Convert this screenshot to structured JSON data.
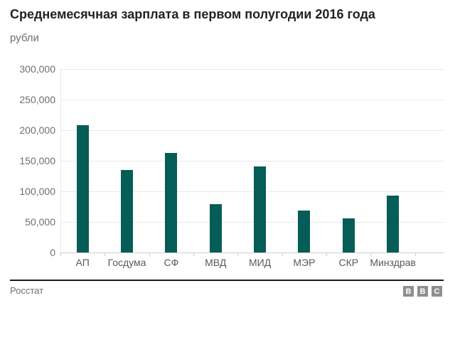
{
  "header": {
    "title": "Среднемесячная зарплата в первом полугодии 2016 года",
    "subtitle": "рубли"
  },
  "chart_data": {
    "type": "bar",
    "title": "Среднемесячная зарплата в первом полугодии 2016 года",
    "ylabel_unit": "рубли",
    "categories": [
      "АП",
      "Госдума",
      "СФ",
      "МВД",
      "МИД",
      "МЭР",
      "СКР",
      "Минздрав"
    ],
    "values": [
      208600,
      135000,
      162800,
      79500,
      140700,
      68600,
      56300,
      93500
    ],
    "ylim": [
      0,
      300000
    ],
    "ytick_step": 50000,
    "ytick_labels": [
      "0",
      "50,000",
      "100,000",
      "150,000",
      "200,000",
      "250,000",
      "300,000"
    ],
    "grid": true,
    "legend": "none",
    "bar_color": "#065c57",
    "source": "Росстат"
  },
  "footer": {
    "source": "Росстат",
    "logo_letters": [
      "B",
      "B",
      "C"
    ]
  },
  "colors": {
    "bar": "#065c57",
    "title_text": "#222222",
    "muted_text": "#6f6f6f",
    "gridline": "#e9e9e9",
    "axis": "#cfcfcf",
    "footer_rule": "#1a1a1a",
    "logo_block": "#8f8f8f"
  }
}
